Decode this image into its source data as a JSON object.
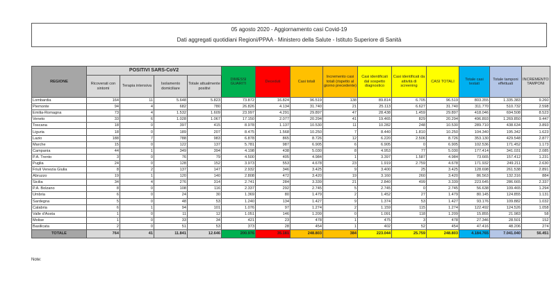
{
  "title": "05 agosto 2020 - Aggiornamento casi Covid-19",
  "subtitle": "Dati aggregati quotidiani Regioni/PPAA - Ministero della Salute - Istituto Superiore di Sanità",
  "table": {
    "group_header": "POSITIVI SARS-CoV2",
    "headers": [
      "REGIONE",
      "Ricoverati con sintomi",
      "Terapia intensiva",
      "Isolamento domiciliare",
      "Totale attualmente positivi",
      "DIMESSI GUARITI",
      "Deceduti",
      "Casi totali",
      "Incremento casi totali (rispetto al giorno precedente)",
      "Casi identificati dal sospetto diagnostico",
      "Casi identificati da attività di screening",
      "CASI TOTALI",
      "Totale casi testati",
      "Totale tamponi effettuati",
      "INCREMENTO TAMPONI"
    ],
    "header_colors": [
      "#a6a6a6",
      "#d9d9d9",
      "#d9d9d9",
      "#d9d9d9",
      "#d9d9d9",
      "#00b050",
      "#ff0000",
      "#ffc000",
      "#ffc000",
      "#ffff00",
      "#ffff00",
      "#ffff00",
      "#00b0f0",
      "#b4c6e7",
      "#d9d9d9"
    ],
    "rows": [
      [
        "Lombardia",
        "164",
        "11",
        "5.648",
        "5.823",
        "73.872",
        "16.824",
        "96.519",
        "138",
        "89.814",
        "6.705",
        "96.519",
        "803.355",
        "1.335.383",
        "9.260"
      ],
      [
        "Piemonte",
        "94",
        "4",
        "682",
        "780",
        "26.826",
        "4.134",
        "31.740",
        "21",
        "25.113",
        "6.627",
        "31.740",
        "311.770",
        "510.732",
        "2.598"
      ],
      [
        "Emilia-Romagna",
        "73",
        "4",
        "1.532",
        "1.609",
        "23.997",
        "4.291",
        "29.897",
        "47",
        "28.438",
        "1.459",
        "29.897",
        "418.046",
        "694.508",
        "8.523"
      ],
      [
        "Veneto",
        "33",
        "6",
        "1.028",
        "1.067",
        "17.150",
        "2.077",
        "20.294",
        "41",
        "19.465",
        "829",
        "20.294",
        "496.893",
        "1.269.850",
        "9.447"
      ],
      [
        "Toscana",
        "18",
        "0",
        "397",
        "415",
        "8.978",
        "1.137",
        "10.530",
        "11",
        "10.282",
        "248",
        "10.530",
        "289.710",
        "438.634",
        "3.893"
      ],
      [
        "Liguria",
        "18",
        "0",
        "189",
        "207",
        "8.475",
        "1.568",
        "10.250",
        "7",
        "8.440",
        "1.810",
        "10.250",
        "104.340",
        "195.342",
        "1.623"
      ],
      [
        "Lazio",
        "188",
        "7",
        "788",
        "983",
        "6.878",
        "865",
        "8.726",
        "12",
        "6.220",
        "2.506",
        "8.726",
        "353.130",
        "429.548",
        "2.877"
      ],
      [
        "Marche",
        "15",
        "0",
        "122",
        "137",
        "5.781",
        "987",
        "6.905",
        "6",
        "6.905",
        "0",
        "6.905",
        "102.536",
        "171.452",
        "1.173"
      ],
      [
        "Campania",
        "44",
        "1",
        "349",
        "394",
        "4.198",
        "438",
        "5.030",
        "8",
        "4.953",
        "77",
        "5.030",
        "177.414",
        "341.031",
        "2.085"
      ],
      [
        "P.A. Trento",
        "3",
        "0",
        "76",
        "79",
        "4.500",
        "405",
        "4.984",
        "1",
        "3.397",
        "1.587",
        "4.984",
        "73.665",
        "157.412",
        "1.231"
      ],
      [
        "Puglia",
        "24",
        "0",
        "128",
        "152",
        "3.973",
        "553",
        "4.678",
        "23",
        "1.919",
        "2.759",
        "4.678",
        "171.932",
        "249.211",
        "2.630"
      ],
      [
        "Friuli Venezia Giulia",
        "8",
        "2",
        "137",
        "147",
        "2.932",
        "346",
        "3.425",
        "9",
        "3.400",
        "25",
        "3.425",
        "128.698",
        "261.538",
        "2.891"
      ],
      [
        "Abruzzo",
        "19",
        "1",
        "120",
        "140",
        "2.808",
        "472",
        "3.420",
        "19",
        "3.160",
        "260",
        "3.420",
        "86.563",
        "132.316",
        "884"
      ],
      [
        "Sicilia",
        "34",
        "4",
        "276",
        "314",
        "2.741",
        "284",
        "3.339",
        "21",
        "2.840",
        "499",
        "3.339",
        "223.645",
        "286.665",
        "2.337"
      ],
      [
        "P.A. Bolzano",
        "8",
        "0",
        "108",
        "116",
        "2.337",
        "292",
        "2.745",
        "5",
        "2.745",
        "0",
        "2.745",
        "56.638",
        "109.465",
        "1.294"
      ],
      [
        "Umbria",
        "6",
        "0",
        "24",
        "30",
        "1.369",
        "80",
        "1.479",
        "2",
        "1.452",
        "27",
        "1.479",
        "80.145",
        "124.855",
        "1.131"
      ],
      [
        "Sardegna",
        "5",
        "0",
        "48",
        "53",
        "1.240",
        "134",
        "1.427",
        "9",
        "1.374",
        "53",
        "1.427",
        "93.176",
        "109.882",
        "1.032"
      ],
      [
        "Calabria",
        "6",
        "1",
        "94",
        "101",
        "1.076",
        "97",
        "1.274",
        "2",
        "1.159",
        "115",
        "1.274",
        "122.492",
        "124.526",
        "1.058"
      ],
      [
        "Valle d'Aosta",
        "1",
        "0",
        "11",
        "12",
        "1.051",
        "146",
        "1.209",
        "0",
        "1.091",
        "118",
        "1.209",
        "15.855",
        "21.983",
        "58"
      ],
      [
        "Molise",
        "1",
        "0",
        "33",
        "34",
        "421",
        "23",
        "478",
        "1",
        "475",
        "3",
        "478",
        "27.346",
        "28.501",
        "152"
      ],
      [
        "Basilicata",
        "2",
        "0",
        "51",
        "53",
        "373",
        "28",
        "454",
        "1",
        "402",
        "52",
        "454",
        "47.416",
        "48.206",
        "274"
      ]
    ],
    "total": [
      "TOTALE",
      "764",
      "41",
      "11.841",
      "12.646",
      "200.976",
      "35.181",
      "248.803",
      "384",
      "223.044",
      "25.759",
      "248.803",
      "4.184.765",
      "7.041.040",
      "56.451"
    ]
  },
  "note_label": "Note:"
}
